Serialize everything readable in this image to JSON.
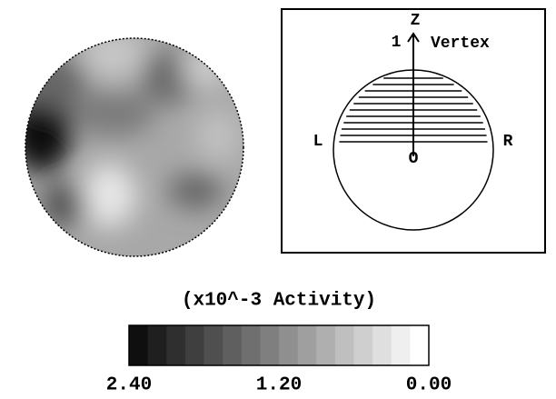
{
  "diagram": {
    "axis_label": "Z",
    "level": "1",
    "vertex": "Vertex",
    "left": "L",
    "right": "R",
    "origin": "O"
  },
  "colorbar": {
    "title": "(x10^-3 Activity)",
    "labels": [
      "2.40",
      "1.20",
      "0.00"
    ]
  }
}
